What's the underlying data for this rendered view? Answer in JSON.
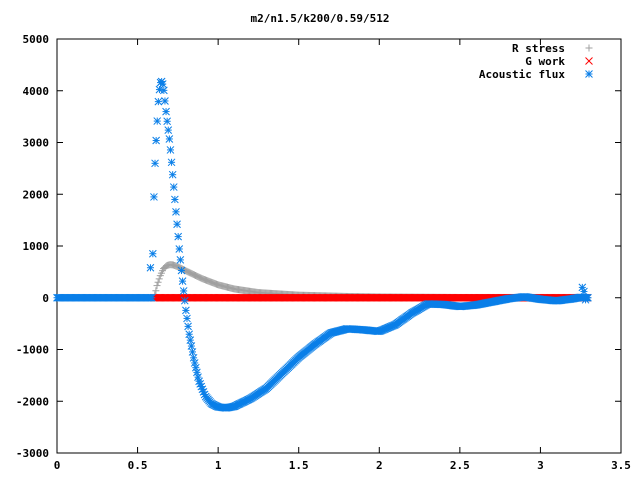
{
  "chart_data": {
    "type": "scatter",
    "title": "m2/n1.5/k200/0.59/512",
    "xlabel": "",
    "ylabel": "",
    "xlim": [
      0,
      3.5
    ],
    "ylim": [
      -3000,
      5000
    ],
    "x_ticks": [
      "0",
      "0.5",
      "1",
      "1.5",
      "2",
      "2.5",
      "3",
      "3.5"
    ],
    "y_ticks": [
      "5000",
      "4000",
      "3000",
      "2000",
      "1000",
      "0",
      "-1000",
      "-2000",
      "-3000"
    ],
    "grid": false,
    "legend_position": "top-right",
    "series": [
      {
        "name": "R stress",
        "marker": "plus",
        "color": "#a0a0a0",
        "x_range": [
          0.6,
          3.3
        ],
        "keypoints": [
          [
            0.6,
            0
          ],
          [
            0.61,
            80
          ],
          [
            0.62,
            230
          ],
          [
            0.64,
            420
          ],
          [
            0.66,
            560
          ],
          [
            0.68,
            620
          ],
          [
            0.7,
            640
          ],
          [
            0.72,
            635
          ],
          [
            0.75,
            600
          ],
          [
            0.8,
            520
          ],
          [
            0.9,
            370
          ],
          [
            1.0,
            250
          ],
          [
            1.1,
            170
          ],
          [
            1.25,
            100
          ],
          [
            1.5,
            50
          ],
          [
            1.8,
            25
          ],
          [
            2.0,
            15
          ],
          [
            2.5,
            5
          ],
          [
            3.0,
            2
          ],
          [
            3.3,
            0
          ]
        ]
      },
      {
        "name": "G work",
        "marker": "cross",
        "color": "#ff0000",
        "x_range": [
          0.6,
          3.3
        ],
        "keypoints": [
          [
            0.6,
            0
          ],
          [
            3.3,
            0
          ]
        ]
      },
      {
        "name": "Acoustic flux",
        "marker": "asterisk",
        "color": "#0a7fe8",
        "x_range": [
          0,
          3.3
        ],
        "keypoints": [
          [
            0.0,
            0
          ],
          [
            0.59,
            0
          ],
          [
            0.6,
            1800
          ],
          [
            0.61,
            2750
          ],
          [
            0.62,
            3300
          ],
          [
            0.63,
            3850
          ],
          [
            0.64,
            4150
          ],
          [
            0.65,
            4180
          ],
          [
            0.66,
            4100
          ],
          [
            0.67,
            3800
          ],
          [
            0.68,
            3500
          ],
          [
            0.7,
            3000
          ],
          [
            0.72,
            2300
          ],
          [
            0.74,
            1600
          ],
          [
            0.76,
            900
          ],
          [
            0.78,
            300
          ],
          [
            0.8,
            -250
          ],
          [
            0.82,
            -700
          ],
          [
            0.85,
            -1200
          ],
          [
            0.88,
            -1600
          ],
          [
            0.92,
            -1900
          ],
          [
            0.96,
            -2050
          ],
          [
            1.0,
            -2110
          ],
          [
            1.05,
            -2130
          ],
          [
            1.1,
            -2100
          ],
          [
            1.2,
            -1950
          ],
          [
            1.3,
            -1750
          ],
          [
            1.4,
            -1450
          ],
          [
            1.5,
            -1150
          ],
          [
            1.6,
            -900
          ],
          [
            1.7,
            -680
          ],
          [
            1.8,
            -600
          ],
          [
            1.9,
            -620
          ],
          [
            2.0,
            -650
          ],
          [
            2.1,
            -520
          ],
          [
            2.2,
            -300
          ],
          [
            2.3,
            -120
          ],
          [
            2.4,
            -130
          ],
          [
            2.5,
            -170
          ],
          [
            2.6,
            -140
          ],
          [
            2.7,
            -80
          ],
          [
            2.8,
            -20
          ],
          [
            2.9,
            20
          ],
          [
            3.0,
            -30
          ],
          [
            3.1,
            -60
          ],
          [
            3.2,
            -20
          ],
          [
            3.25,
            10
          ],
          [
            3.28,
            0
          ],
          [
            3.3,
            0
          ]
        ],
        "extra_points": [
          [
            0.58,
            580
          ],
          [
            3.26,
            200
          ],
          [
            3.27,
            120
          ],
          [
            3.28,
            -40
          ]
        ]
      }
    ]
  }
}
